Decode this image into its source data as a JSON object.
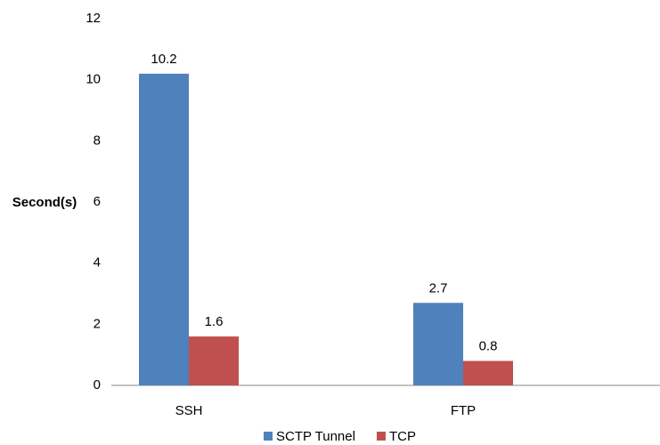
{
  "chart_data": {
    "type": "bar",
    "y_label": "Second(s)",
    "categories": [
      "SSH",
      "FTP"
    ],
    "series": [
      {
        "name": "SCTP Tunnel",
        "color": "#4f81bd",
        "values": [
          10.2,
          2.7
        ]
      },
      {
        "name": "TCP",
        "color": "#c0504d",
        "values": [
          1.6,
          0.8
        ]
      }
    ],
    "ylim": [
      0,
      12
    ],
    "yticks": [
      0,
      2,
      4,
      6,
      8,
      10,
      12
    ],
    "grid": false,
    "legend": "bottom"
  }
}
